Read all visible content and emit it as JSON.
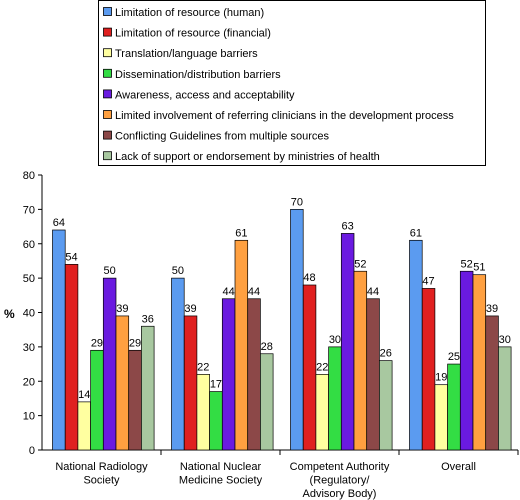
{
  "chart_data": {
    "type": "bar",
    "ylabel": "%",
    "ylim": [
      0,
      80
    ],
    "yticks": [
      "0",
      "10",
      "20",
      "30",
      "40",
      "50",
      "60",
      "70",
      "80"
    ],
    "grid": false,
    "legend_position": "top",
    "categories": [
      [
        "National Radiology",
        "Society"
      ],
      [
        "National Nuclear",
        "Medicine Society"
      ],
      [
        "Competent Authority",
        "(Regulatory/",
        "Advisory Body)"
      ],
      [
        "Overall"
      ]
    ],
    "series": [
      {
        "name": "Limitation of resource (human)",
        "color": "#5b9bf0",
        "values": [
          64,
          50,
          70,
          61
        ]
      },
      {
        "name": "Limitation of resource (financial)",
        "color": "#e02020",
        "values": [
          54,
          39,
          48,
          47
        ]
      },
      {
        "name": "Translation/language barriers",
        "color": "#ffffa0",
        "values": [
          14,
          22,
          22,
          19
        ]
      },
      {
        "name": "Dissemination/distribution barriers",
        "color": "#33dd44",
        "values": [
          29,
          17,
          30,
          25
        ]
      },
      {
        "name": "Awareness, access and acceptability",
        "color": "#6a1ae0",
        "values": [
          50,
          44,
          63,
          52
        ]
      },
      {
        "name": "Limited involvement of referring clinicians in the development process",
        "color": "#ffa040",
        "values": [
          39,
          61,
          52,
          51
        ]
      },
      {
        "name": "Conflicting Guidelines from multiple sources",
        "color": "#8c4848",
        "values": [
          29,
          44,
          44,
          39
        ]
      },
      {
        "name": "Lack of support or endorsement by ministries of health",
        "color": "#a8c8a0",
        "values": [
          36,
          28,
          26,
          30
        ]
      }
    ]
  }
}
